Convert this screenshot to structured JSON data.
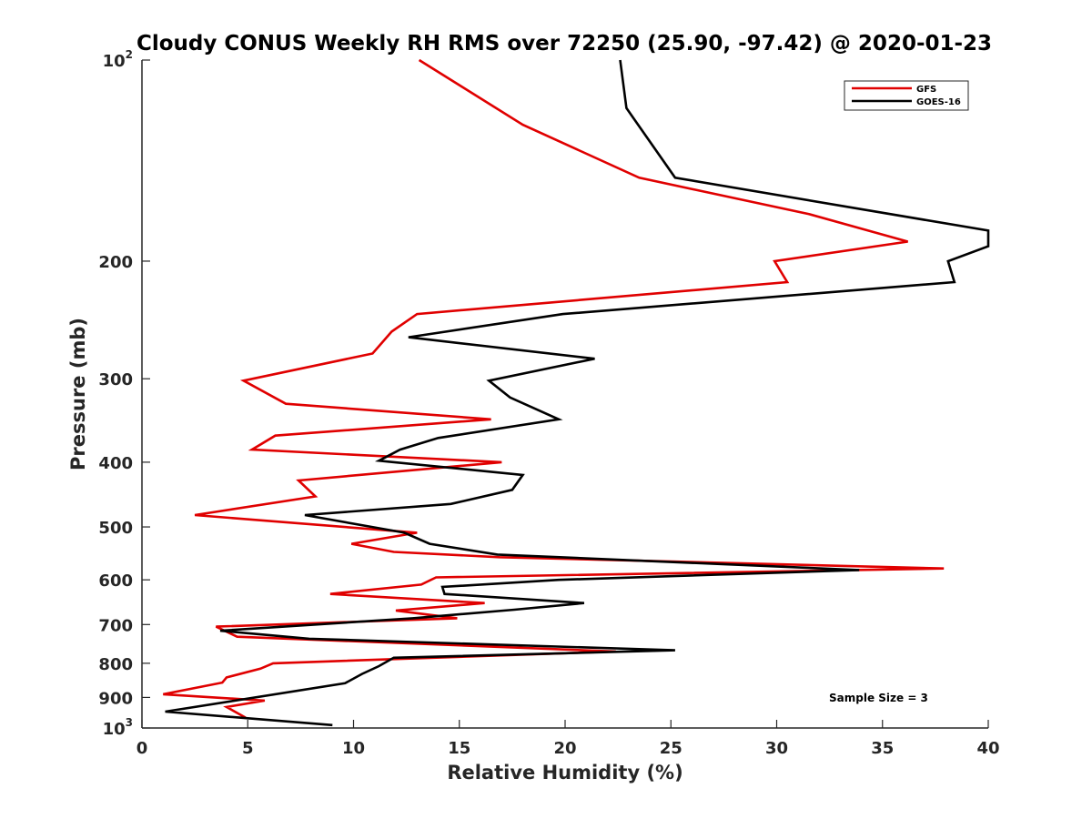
{
  "chart_data": {
    "type": "line",
    "title": "Cloudy CONUS Weekly RH RMS over 72250 (25.90, -97.42) @ 2020-01-23",
    "xlabel": "Relative Humidity (%)",
    "ylabel": "Pressure (mb)",
    "xlim": [
      0,
      40
    ],
    "ylim": [
      100,
      1000
    ],
    "y_scale": "log",
    "y_reversed": true,
    "x_ticks": [
      "0",
      "5",
      "10",
      "15",
      "20",
      "25",
      "30",
      "35",
      "40"
    ],
    "y_ticks": [
      {
        "value": 100,
        "base": "10",
        "sup": "2"
      },
      {
        "value": 200,
        "label": "200"
      },
      {
        "value": 300,
        "label": "300"
      },
      {
        "value": 400,
        "label": "400"
      },
      {
        "value": 500,
        "label": "500"
      },
      {
        "value": 600,
        "label": "600"
      },
      {
        "value": 700,
        "label": "700"
      },
      {
        "value": 800,
        "label": "800"
      },
      {
        "value": 900,
        "label": "900"
      },
      {
        "value": 1000,
        "base": "10",
        "sup": "3"
      }
    ],
    "grid": false,
    "legend_position": "top-right",
    "annotation": "Sample Size = 3",
    "series": [
      {
        "name": "GFS",
        "color": "#e00000",
        "points": [
          [
            13.1,
            100
          ],
          [
            18.0,
            125
          ],
          [
            23.5,
            150
          ],
          [
            31.5,
            170
          ],
          [
            36.2,
            187
          ],
          [
            29.9,
            200
          ],
          [
            30.5,
            215
          ],
          [
            13.0,
            240
          ],
          [
            11.8,
            255
          ],
          [
            10.9,
            275
          ],
          [
            4.8,
            302
          ],
          [
            6.8,
            327
          ],
          [
            16.5,
            345
          ],
          [
            6.3,
            365
          ],
          [
            5.2,
            383
          ],
          [
            17.0,
            400
          ],
          [
            7.4,
            426
          ],
          [
            8.2,
            450
          ],
          [
            2.5,
            480
          ],
          [
            13.0,
            510
          ],
          [
            9.9,
            530
          ],
          [
            11.9,
            545
          ],
          [
            16.9,
            555
          ],
          [
            37.9,
            577
          ],
          [
            13.9,
            595
          ],
          [
            13.2,
            610
          ],
          [
            8.9,
            630
          ],
          [
            16.2,
            650
          ],
          [
            12.0,
            667
          ],
          [
            14.9,
            685
          ],
          [
            3.5,
            705
          ],
          [
            4.5,
            730
          ],
          [
            22.4,
            768
          ],
          [
            6.2,
            800
          ],
          [
            5.6,
            815
          ],
          [
            4.0,
            840
          ],
          [
            3.8,
            855
          ],
          [
            1.0,
            890
          ],
          [
            5.8,
            910
          ],
          [
            4.0,
            930
          ],
          [
            4.9,
            965
          ]
        ]
      },
      {
        "name": "GOES-16",
        "color": "#000000",
        "points": [
          [
            22.6,
            100
          ],
          [
            22.9,
            118
          ],
          [
            25.2,
            150
          ],
          [
            40.0,
            180
          ],
          [
            40.0,
            190
          ],
          [
            38.1,
            200
          ],
          [
            38.4,
            215
          ],
          [
            19.9,
            240
          ],
          [
            12.6,
            260
          ],
          [
            21.4,
            280
          ],
          [
            16.4,
            302
          ],
          [
            17.4,
            320
          ],
          [
            19.7,
            345
          ],
          [
            14.0,
            368
          ],
          [
            12.2,
            383
          ],
          [
            11.2,
            398
          ],
          [
            18.0,
            418
          ],
          [
            17.5,
            440
          ],
          [
            14.6,
            462
          ],
          [
            7.7,
            480
          ],
          [
            12.4,
            510
          ],
          [
            13.6,
            530
          ],
          [
            16.8,
            550
          ],
          [
            33.9,
            580
          ],
          [
            19.7,
            600
          ],
          [
            14.2,
            615
          ],
          [
            14.3,
            630
          ],
          [
            20.9,
            650
          ],
          [
            17.6,
            665
          ],
          [
            12.8,
            685
          ],
          [
            3.7,
            715
          ],
          [
            7.9,
            735
          ],
          [
            25.2,
            765
          ],
          [
            11.9,
            785
          ],
          [
            11.2,
            808
          ],
          [
            10.4,
            830
          ],
          [
            9.6,
            857
          ],
          [
            1.1,
            945
          ],
          [
            9.0,
            990
          ]
        ]
      }
    ]
  }
}
